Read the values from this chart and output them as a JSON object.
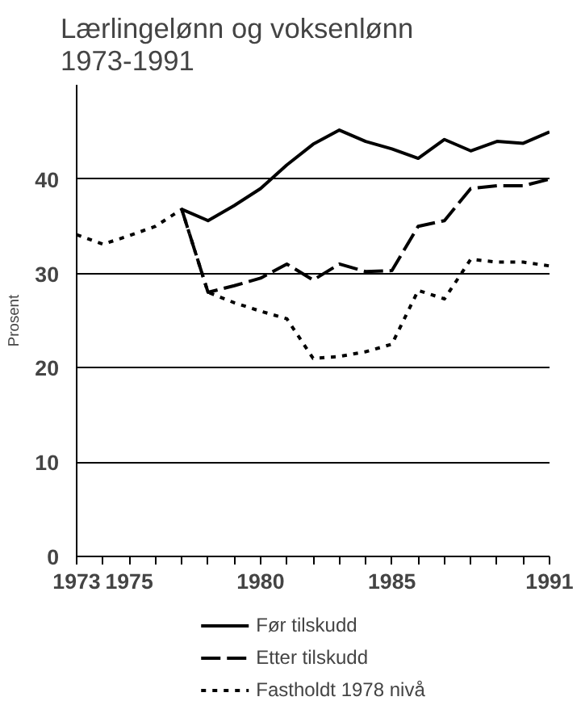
{
  "chart_data": {
    "type": "line",
    "title": "Lærlingelønn og voksenlønn\n1973-1991",
    "ylabel": "Prosent",
    "xlim": [
      1973,
      1991
    ],
    "ylim": [
      0,
      50
    ],
    "xticks": [
      1973,
      {
        "value": 1974,
        "label": null
      },
      1975,
      {
        "value": 1976,
        "label": null
      },
      {
        "value": 1977,
        "label": null
      },
      {
        "value": 1978,
        "label": null
      },
      {
        "value": 1979,
        "label": null
      },
      1980,
      {
        "value": 1981,
        "label": null
      },
      {
        "value": 1982,
        "label": null
      },
      {
        "value": 1983,
        "label": null
      },
      {
        "value": 1984,
        "label": null
      },
      1985,
      {
        "value": 1986,
        "label": null
      },
      {
        "value": 1987,
        "label": null
      },
      {
        "value": 1988,
        "label": null
      },
      {
        "value": 1989,
        "label": null
      },
      {
        "value": 1990,
        "label": null
      },
      1991
    ],
    "yticks": [
      0,
      10,
      20,
      30,
      40
    ],
    "grid": "y",
    "legend": "bottom",
    "series": [
      {
        "name": "Før tilskudd",
        "color": "#000000",
        "line_style": "solid",
        "x": [
          1977,
          1978,
          1979,
          1980,
          1981,
          1982,
          1983,
          1984,
          1985,
          1986,
          1987,
          1988,
          1989,
          1990,
          1991
        ],
        "values": [
          36.8,
          35.6,
          37.2,
          39,
          41.5,
          43.7,
          45.2,
          44,
          43.2,
          42.2,
          44.2,
          43,
          44,
          43.8,
          45
        ]
      },
      {
        "name": "Etter tilskudd",
        "color": "#000000",
        "line_style": "dashed",
        "x": [
          1977,
          1978,
          1979,
          1980,
          1981,
          1982,
          1983,
          1984,
          1985,
          1986,
          1987,
          1988,
          1989,
          1990,
          1991
        ],
        "values": [
          36.8,
          28,
          28.7,
          29.5,
          31,
          29.3,
          31,
          30.2,
          30.3,
          35,
          35.6,
          39,
          39.3,
          39.3,
          40
        ]
      },
      {
        "name": "Fastholdt 1978 nivå",
        "color": "#000000",
        "line_style": "dotted",
        "x": [
          1973,
          1974,
          1975,
          1976,
          1977,
          1978,
          1979,
          1980,
          1981,
          1982,
          1983,
          1984,
          1985,
          1986,
          1987,
          1988,
          1989,
          1990,
          1991
        ],
        "values": [
          34.1,
          33.1,
          34,
          35,
          36.8,
          28,
          26.9,
          26,
          25.2,
          21,
          21.2,
          21.7,
          22.5,
          28.2,
          27.3,
          31.5,
          31.2,
          31.2,
          30.8
        ]
      }
    ]
  }
}
